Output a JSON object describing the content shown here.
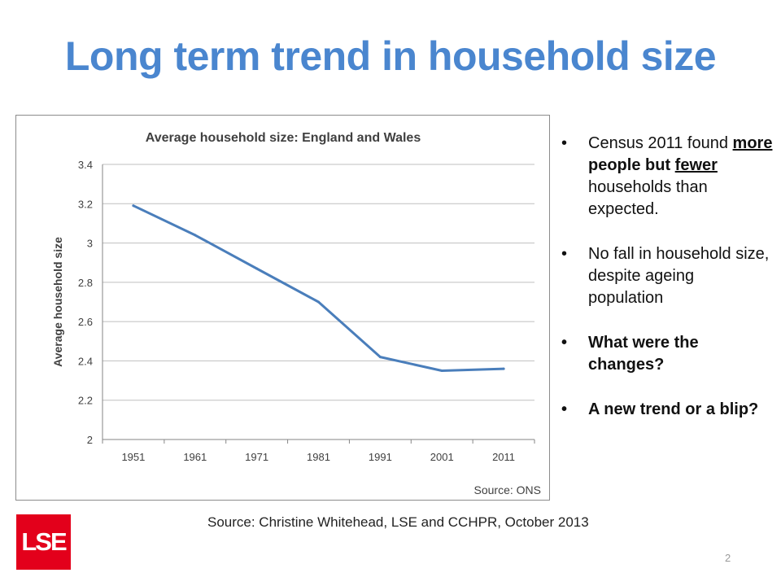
{
  "slide": {
    "title": "Long term trend in household size",
    "footer_source": "Source: Christine Whitehead, LSE and CCHPR, October 2013",
    "page_number": "2",
    "logo_text": "LSE"
  },
  "bullets": [
    {
      "parts": [
        "Census 2011 found ",
        "more",
        " people but ",
        "fewer",
        " households than expected."
      ]
    },
    {
      "text": "No fall in household size, despite ageing population"
    },
    {
      "text": "What were the changes?"
    },
    {
      "text": "A new trend or a blip?"
    }
  ],
  "colors": {
    "title": "#4a86cf",
    "line": "#4a7ebb",
    "logo": "#e3001b"
  },
  "chart_data": {
    "type": "line",
    "title": "Average household size: England and Wales",
    "ylabel": "Average household size",
    "xlabel": "",
    "source": "Source: ONS",
    "categories": [
      "1951",
      "1961",
      "1971",
      "1981",
      "1991",
      "2001",
      "2011"
    ],
    "values": [
      3.19,
      3.04,
      2.87,
      2.7,
      2.42,
      2.35,
      2.36
    ],
    "ylim": [
      2,
      3.4
    ],
    "yticks": [
      2,
      2.2,
      2.4,
      2.6,
      2.8,
      3,
      3.2,
      3.4
    ],
    "ytick_labels": [
      "2",
      "2.2",
      "2.4",
      "2.6",
      "2.8",
      "3",
      "3.2",
      "3.4"
    ],
    "grid": true,
    "legend": "none"
  }
}
